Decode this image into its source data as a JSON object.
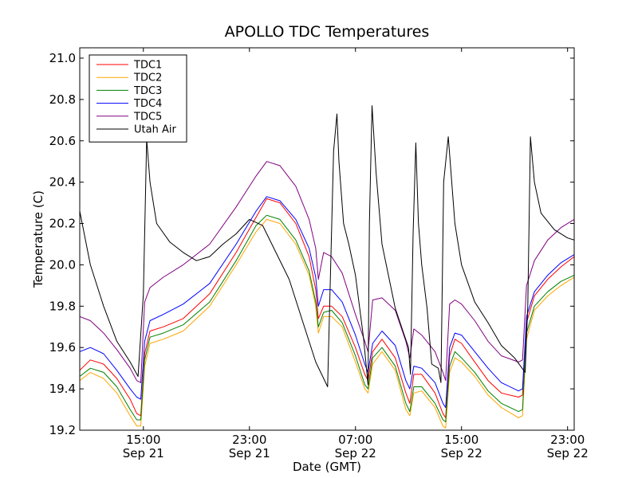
{
  "chart_data": {
    "type": "line",
    "title": "APOLLO TDC Temperatures",
    "xlabel": "Date (GMT)",
    "ylabel": "Temperature (C)",
    "x_unit": "hours since Sep 21 00:00 GMT",
    "xlim": [
      10.2,
      47.5
    ],
    "ylim": [
      19.2,
      21.05
    ],
    "yticks": [
      19.2,
      19.4,
      19.6,
      19.8,
      20.0,
      20.2,
      20.4,
      20.6,
      20.8,
      21.0
    ],
    "yticklabels": [
      "19.2",
      "19.4",
      "19.6",
      "19.8",
      "20.0",
      "20.2",
      "20.4",
      "20.6",
      "20.8",
      "21.0"
    ],
    "xticks": [
      {
        "x": 15,
        "time": "15:00",
        "date": "Sep 21"
      },
      {
        "x": 23,
        "time": "23:00",
        "date": "Sep 21"
      },
      {
        "x": 31,
        "time": "07:00",
        "date": "Sep 22"
      },
      {
        "x": 39,
        "time": "15:00",
        "date": "Sep 22"
      },
      {
        "x": 47,
        "time": "23:00",
        "date": "Sep 22"
      }
    ],
    "legend_position": "top-left",
    "series": [
      {
        "name": "TDC1",
        "color": "#ff0000",
        "x": [
          10.2,
          11.0,
          12.0,
          13.0,
          14.0,
          14.5,
          14.8,
          15.1,
          15.5,
          16.5,
          18.0,
          20.0,
          22.0,
          23.5,
          24.3,
          25.3,
          26.5,
          27.5,
          28.0,
          28.2,
          28.6,
          29.2,
          30.0,
          31.0,
          31.7,
          31.95,
          32.3,
          33.0,
          34.0,
          34.8,
          35.1,
          35.4,
          36.0,
          37.0,
          37.6,
          37.8,
          38.1,
          38.5,
          39.0,
          40.0,
          41.0,
          42.0,
          43.3,
          43.6,
          43.9,
          44.5,
          45.5,
          46.5,
          47.5
        ],
        "values": [
          19.49,
          19.54,
          19.52,
          19.45,
          19.35,
          19.28,
          19.27,
          19.57,
          19.68,
          19.7,
          19.74,
          19.86,
          20.06,
          20.23,
          20.32,
          20.3,
          20.2,
          20.04,
          19.88,
          19.74,
          19.8,
          19.8,
          19.75,
          19.6,
          19.47,
          19.44,
          19.58,
          19.64,
          19.55,
          19.38,
          19.33,
          19.47,
          19.47,
          19.38,
          19.28,
          19.26,
          19.56,
          19.64,
          19.62,
          19.53,
          19.44,
          19.38,
          19.36,
          19.37,
          19.72,
          19.85,
          19.93,
          19.99,
          20.04
        ]
      },
      {
        "name": "TDC2",
        "color": "#ffa500",
        "x": [
          10.2,
          11.0,
          12.0,
          13.0,
          14.0,
          14.5,
          14.8,
          15.1,
          15.5,
          16.5,
          18.0,
          20.0,
          22.0,
          23.5,
          24.3,
          25.3,
          26.5,
          27.5,
          28.0,
          28.2,
          28.6,
          29.2,
          30.0,
          31.0,
          31.7,
          31.95,
          32.3,
          33.0,
          34.0,
          34.8,
          35.1,
          35.4,
          36.0,
          37.0,
          37.6,
          37.8,
          38.1,
          38.5,
          39.0,
          40.0,
          41.0,
          42.0,
          43.3,
          43.6,
          43.9,
          44.5,
          45.5,
          46.5,
          47.5
        ],
        "values": [
          19.44,
          19.48,
          19.45,
          19.38,
          19.27,
          19.22,
          19.22,
          19.51,
          19.62,
          19.64,
          19.68,
          19.8,
          20.0,
          20.16,
          20.22,
          20.2,
          20.1,
          19.95,
          19.8,
          19.67,
          19.75,
          19.75,
          19.7,
          19.53,
          19.4,
          19.38,
          19.52,
          19.58,
          19.49,
          19.3,
          19.27,
          19.38,
          19.39,
          19.31,
          19.22,
          19.21,
          19.48,
          19.55,
          19.53,
          19.46,
          19.37,
          19.31,
          19.26,
          19.27,
          19.64,
          19.78,
          19.85,
          19.9,
          19.94
        ]
      },
      {
        "name": "TDC3",
        "color": "#008000",
        "x": [
          10.2,
          11.0,
          12.0,
          13.0,
          14.0,
          14.5,
          14.8,
          15.1,
          15.5,
          16.5,
          18.0,
          20.0,
          22.0,
          23.5,
          24.3,
          25.3,
          26.5,
          27.5,
          28.0,
          28.2,
          28.6,
          29.2,
          30.0,
          31.0,
          31.7,
          31.95,
          32.3,
          33.0,
          34.0,
          34.8,
          35.1,
          35.4,
          36.0,
          37.0,
          37.6,
          37.8,
          38.1,
          38.5,
          39.0,
          40.0,
          41.0,
          42.0,
          43.3,
          43.6,
          43.9,
          44.5,
          45.5,
          46.5,
          47.5
        ],
        "values": [
          19.46,
          19.5,
          19.48,
          19.41,
          19.3,
          19.25,
          19.25,
          19.54,
          19.65,
          19.67,
          19.71,
          19.82,
          20.02,
          20.19,
          20.24,
          20.22,
          20.12,
          19.97,
          19.82,
          19.7,
          19.77,
          19.78,
          19.72,
          19.56,
          19.42,
          19.4,
          19.55,
          19.6,
          19.51,
          19.33,
          19.29,
          19.41,
          19.41,
          19.33,
          19.25,
          19.24,
          19.51,
          19.58,
          19.55,
          19.48,
          19.39,
          19.33,
          19.29,
          19.3,
          19.67,
          19.8,
          19.87,
          19.92,
          19.95
        ]
      },
      {
        "name": "TDC4",
        "color": "#0000ff",
        "x": [
          10.2,
          11.0,
          12.0,
          13.0,
          14.0,
          14.5,
          14.8,
          15.1,
          15.5,
          16.5,
          18.0,
          20.0,
          22.0,
          23.5,
          24.3,
          25.3,
          26.5,
          27.5,
          28.0,
          28.2,
          28.6,
          29.2,
          30.0,
          31.0,
          31.7,
          31.95,
          32.3,
          33.0,
          34.0,
          34.8,
          35.1,
          35.4,
          36.0,
          37.0,
          37.6,
          37.8,
          38.1,
          38.5,
          39.0,
          40.0,
          41.0,
          42.0,
          43.3,
          43.6,
          43.9,
          44.5,
          45.5,
          46.5,
          47.5
        ],
        "values": [
          19.58,
          19.6,
          19.57,
          19.49,
          19.4,
          19.36,
          19.35,
          19.63,
          19.73,
          19.76,
          19.81,
          19.91,
          20.1,
          20.26,
          20.33,
          20.31,
          20.22,
          20.08,
          19.94,
          19.8,
          19.88,
          19.88,
          19.82,
          19.66,
          19.52,
          19.48,
          19.62,
          19.68,
          19.61,
          19.44,
          19.4,
          19.51,
          19.5,
          19.43,
          19.33,
          19.31,
          19.6,
          19.67,
          19.66,
          19.58,
          19.5,
          19.43,
          19.39,
          19.4,
          19.75,
          19.87,
          19.95,
          20.01,
          20.05
        ]
      },
      {
        "name": "TDC5",
        "color": "#800080",
        "x": [
          10.2,
          11.0,
          12.0,
          13.0,
          14.0,
          14.5,
          14.8,
          15.1,
          15.5,
          16.5,
          18.0,
          20.0,
          22.0,
          23.5,
          24.3,
          25.3,
          26.5,
          27.5,
          28.0,
          28.2,
          28.6,
          29.2,
          30.0,
          31.0,
          31.7,
          31.95,
          32.3,
          33.0,
          34.0,
          34.8,
          35.1,
          35.4,
          36.0,
          37.0,
          37.6,
          37.8,
          38.1,
          38.5,
          39.0,
          40.0,
          41.0,
          42.0,
          43.3,
          43.6,
          43.9,
          44.5,
          45.5,
          46.5,
          47.5
        ],
        "values": [
          19.75,
          19.73,
          19.67,
          19.59,
          19.5,
          19.44,
          19.43,
          19.82,
          19.89,
          19.94,
          20.0,
          20.1,
          20.28,
          20.43,
          20.5,
          20.48,
          20.38,
          20.22,
          20.08,
          19.93,
          20.06,
          20.04,
          19.96,
          19.76,
          19.63,
          19.58,
          19.83,
          19.84,
          19.78,
          19.63,
          19.55,
          19.69,
          19.66,
          19.58,
          19.48,
          19.44,
          19.81,
          19.83,
          19.81,
          19.73,
          19.63,
          19.56,
          19.53,
          19.54,
          19.9,
          20.02,
          20.12,
          20.18,
          20.22
        ]
      },
      {
        "name": "Utah Air",
        "color": "#000000",
        "x": [
          10.2,
          11.0,
          12.0,
          13.0,
          14.0,
          14.6,
          15.0,
          15.25,
          15.5,
          16.0,
          17.0,
          18.0,
          19.0,
          20.0,
          21.0,
          22.0,
          23.0,
          24.0,
          25.0,
          26.0,
          27.0,
          28.0,
          28.9,
          29.35,
          29.6,
          29.75,
          30.1,
          30.5,
          31.0,
          31.6,
          31.95,
          32.05,
          32.25,
          32.55,
          33.0,
          34.0,
          35.0,
          35.15,
          35.35,
          35.55,
          35.75,
          36.0,
          36.4,
          36.75,
          37.25,
          37.45,
          37.65,
          38.0,
          38.5,
          39.0,
          40.0,
          41.0,
          42.0,
          43.0,
          43.8,
          44.0,
          44.2,
          44.5,
          45.0,
          46.0,
          47.0,
          47.5
        ],
        "values": [
          20.26,
          20.0,
          19.8,
          19.63,
          19.53,
          19.46,
          19.86,
          20.61,
          20.4,
          20.2,
          20.11,
          20.06,
          20.02,
          20.04,
          20.1,
          20.15,
          20.22,
          20.19,
          20.06,
          19.93,
          19.73,
          19.53,
          19.41,
          20.55,
          20.73,
          20.5,
          20.2,
          20.1,
          19.95,
          19.65,
          19.42,
          20.2,
          20.77,
          20.45,
          20.1,
          19.79,
          19.6,
          19.47,
          20.15,
          20.59,
          20.2,
          20.0,
          19.79,
          19.52,
          19.5,
          19.43,
          20.4,
          20.62,
          20.2,
          20.0,
          19.82,
          19.72,
          19.61,
          19.55,
          19.48,
          19.8,
          20.62,
          20.4,
          20.25,
          20.17,
          20.13,
          20.12
        ]
      }
    ]
  }
}
